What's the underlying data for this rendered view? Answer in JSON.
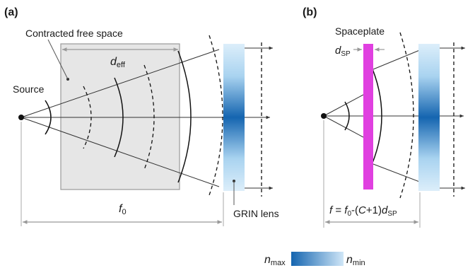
{
  "panels": {
    "a": {
      "tag": "(a)",
      "free_space_label": "Contracted free space",
      "source_label": "Source",
      "deff_main": "d",
      "deff_sub": "eff",
      "f0_main": "f",
      "f0_sub": "0",
      "lens_label": "GRIN lens"
    },
    "b": {
      "tag": "(b)",
      "spaceplate_label": "Spaceplate",
      "dsp_main": "d",
      "dsp_sub": "SP",
      "focal_f": "f",
      "focal_eq": " = ",
      "focal_f0": "f",
      "focal_f0_sub": "0",
      "focal_mid": "-(",
      "focal_C": "C",
      "focal_plus": "+1)",
      "focal_d": "d",
      "focal_d_sub": "SP"
    }
  },
  "legend": {
    "n_max_main": "n",
    "n_max_sub": "max",
    "n_min_main": "n",
    "n_min_sub": "min"
  },
  "colors": {
    "grin_edge": "#cfe6f7",
    "grin_center": "#1565b0",
    "spaceplate": "#e040e0",
    "free_space_fill": "#e6e6e6",
    "dimension_line": "#999999"
  }
}
